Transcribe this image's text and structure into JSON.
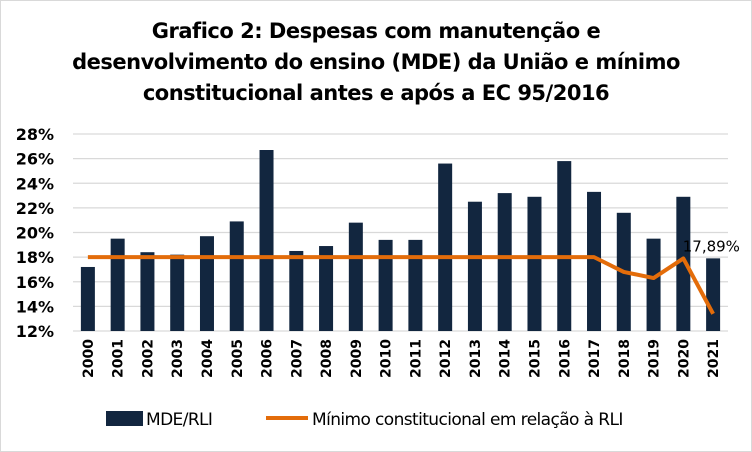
{
  "chart_data": {
    "type": "bar",
    "title_lines": [
      "Grafico 2: Despesas com manutenção e",
      "desenvolvimento do ensino (MDE) da União e mínimo",
      "constitucional antes e após a EC 95/2016"
    ],
    "categories": [
      "2000",
      "2001",
      "2002",
      "2003",
      "2004",
      "2005",
      "2006",
      "2007",
      "2008",
      "2009",
      "2010",
      "2011",
      "2012",
      "2013",
      "2014",
      "2015",
      "2016",
      "2017",
      "2018",
      "2019",
      "2020",
      "2021"
    ],
    "series": [
      {
        "name": "MDE/RLI",
        "type": "bar",
        "color": "#12263f",
        "values": [
          17.2,
          19.5,
          18.4,
          18.2,
          19.7,
          20.9,
          26.7,
          18.5,
          18.9,
          20.8,
          19.4,
          19.4,
          25.6,
          22.5,
          23.2,
          22.9,
          25.8,
          23.3,
          21.6,
          19.5,
          22.9,
          17.9
        ]
      },
      {
        "name": "Mínimo constitucional em relação à RLI",
        "type": "line",
        "color": "#e36c0a",
        "values": [
          18,
          18,
          18,
          18,
          18,
          18,
          18,
          18,
          18,
          18,
          18,
          18,
          18,
          18,
          18,
          18,
          18,
          18,
          16.8,
          16.3,
          17.89,
          13.4
        ]
      }
    ],
    "annotations": [
      {
        "category": "2020",
        "series": 1,
        "text": "17,89%"
      }
    ],
    "ylim": [
      12,
      28
    ],
    "yticks": [
      12,
      14,
      16,
      18,
      20,
      22,
      24,
      26,
      28
    ],
    "ytick_labels": [
      "12%",
      "14%",
      "16%",
      "18%",
      "20%",
      "22%",
      "24%",
      "26%",
      "28%"
    ],
    "grid": true,
    "legend_position": "bottom",
    "xlabel": "",
    "ylabel": ""
  }
}
